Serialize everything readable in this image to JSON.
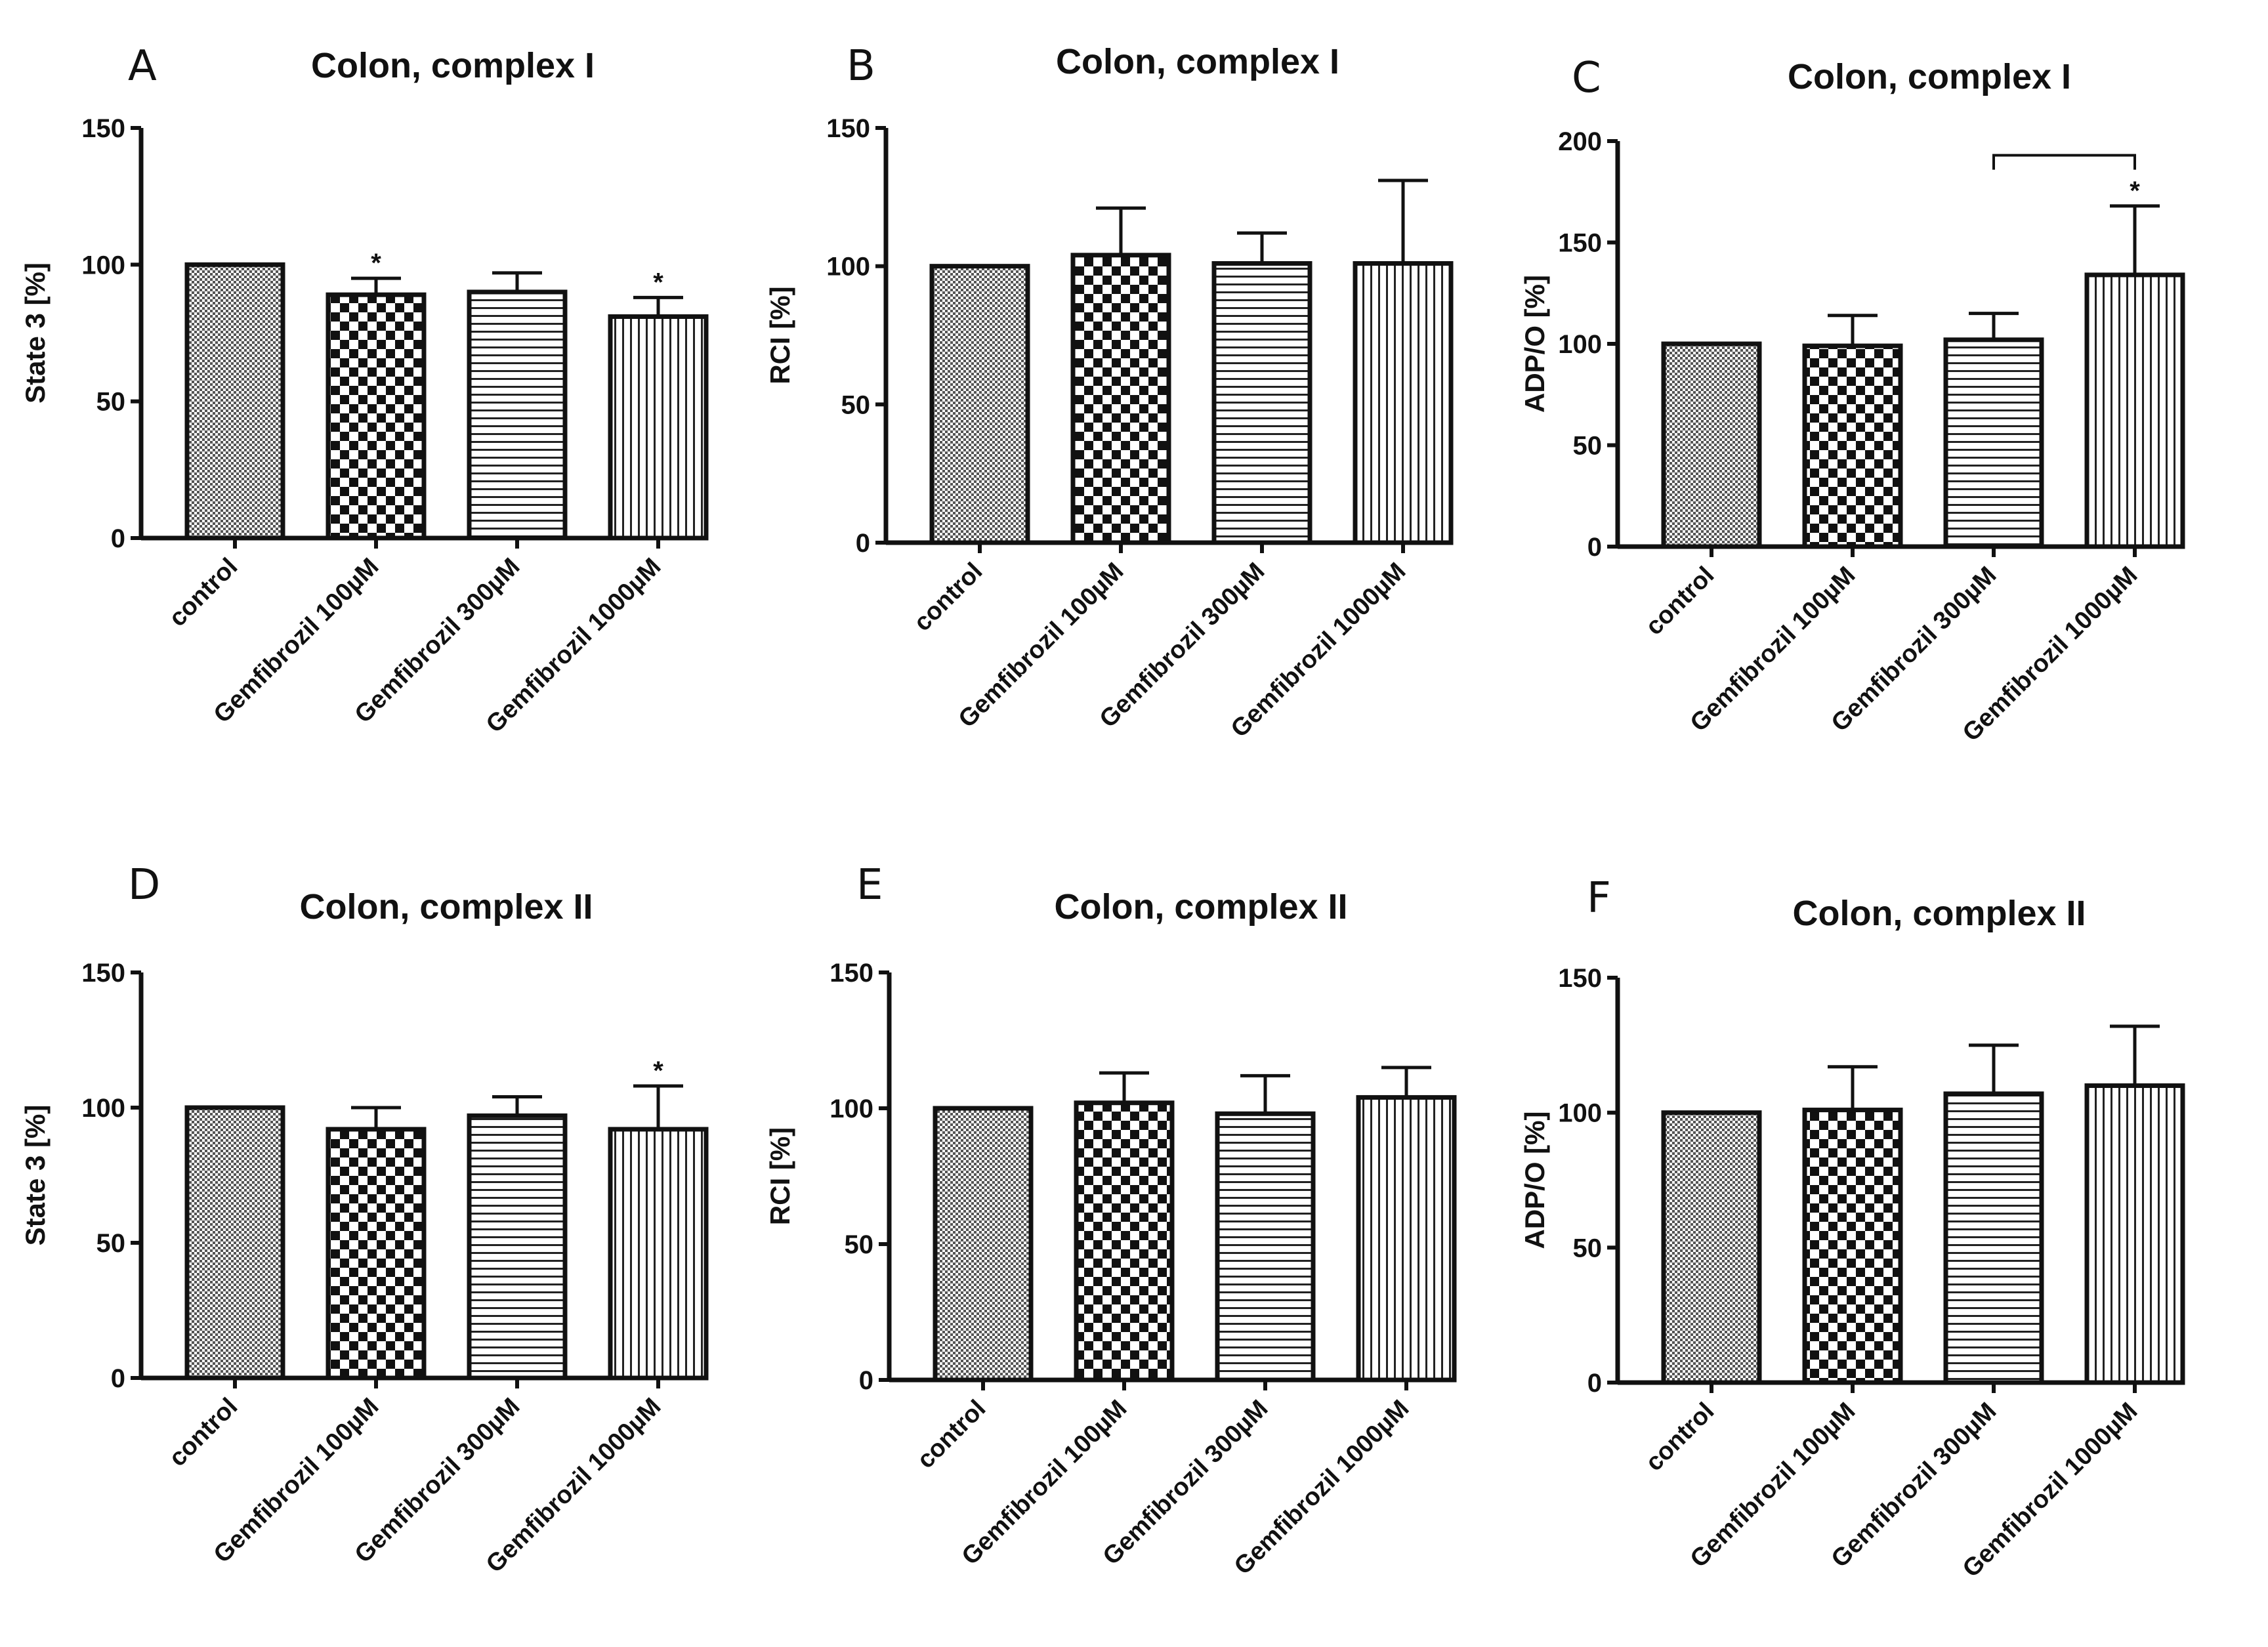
{
  "figure": {
    "category_labels": [
      "control",
      "Gemfibrozil 100µM",
      "Gemfibrozil 300µM",
      "Gemfibrozil 1000µM"
    ],
    "pattern_names": [
      "dense-dots-pattern",
      "checkerboard-pattern",
      "horizontal-lines-pattern",
      "vertical-lines-pattern"
    ]
  },
  "chart_data": [
    {
      "panel": "A",
      "type": "bar",
      "title": "Colon, complex I",
      "ylabel": "State 3 [%]",
      "categories": [
        "control",
        "Gemfibrozil 100µM",
        "Gemfibrozil 300µM",
        "Gemfibrozil 1000µM"
      ],
      "values": [
        100,
        89,
        90,
        81
      ],
      "errors": [
        0,
        6,
        7,
        7
      ],
      "ylim": [
        0,
        150
      ],
      "yticks": [
        0,
        50,
        100,
        150
      ],
      "annotations": [
        {
          "category": 1,
          "text": "*"
        },
        {
          "category": 3,
          "text": "*"
        }
      ]
    },
    {
      "panel": "B",
      "type": "bar",
      "title": "Colon, complex I",
      "ylabel": "RCI  [%]",
      "categories": [
        "control",
        "Gemfibrozil 100µM",
        "Gemfibrozil 300µM",
        "Gemfibrozil 1000µM"
      ],
      "values": [
        100,
        104,
        101,
        101
      ],
      "errors": [
        0,
        17,
        11,
        30
      ],
      "ylim": [
        0,
        150
      ],
      "yticks": [
        0,
        50,
        100,
        150
      ],
      "annotations": []
    },
    {
      "panel": "C",
      "type": "bar",
      "title": "Colon, complex I",
      "ylabel": "ADP/O    [%]",
      "categories": [
        "control",
        "Gemfibrozil 100µM",
        "Gemfibrozil 300µM",
        "Gemfibrozil 1000µM"
      ],
      "values": [
        100,
        99,
        102,
        134
      ],
      "errors": [
        0,
        15,
        13,
        34
      ],
      "ylim": [
        0,
        200
      ],
      "yticks": [
        0,
        50,
        100,
        150,
        200
      ],
      "annotations": [
        {
          "category": 3,
          "text": "*"
        }
      ],
      "bracket": {
        "from": 2,
        "to": 3,
        "y": 193
      }
    },
    {
      "panel": "D",
      "type": "bar",
      "title": "Colon, complex II",
      "ylabel": "State 3 [%]",
      "categories": [
        "control",
        "Gemfibrozil 100µM",
        "Gemfibrozil 300µM",
        "Gemfibrozil 1000µM"
      ],
      "values": [
        100,
        92,
        97,
        92
      ],
      "errors": [
        0,
        8,
        7,
        16
      ],
      "ylim": [
        0,
        150
      ],
      "yticks": [
        0,
        50,
        100,
        150
      ],
      "annotations": [
        {
          "category": 3,
          "text": "*"
        }
      ]
    },
    {
      "panel": "E",
      "type": "bar",
      "title": "Colon, complex II",
      "ylabel": "RCI   [%]",
      "categories": [
        "control",
        "Gemfibrozil 100µM",
        "Gemfibrozil 300µM",
        "Gemfibrozil 1000µM"
      ],
      "values": [
        100,
        102,
        98,
        104
      ],
      "errors": [
        0,
        11,
        14,
        11
      ],
      "ylim": [
        0,
        150
      ],
      "yticks": [
        0,
        50,
        100,
        150
      ],
      "annotations": []
    },
    {
      "panel": "F",
      "type": "bar",
      "title": "Colon, complex II",
      "ylabel": "ADP/O    [%]",
      "categories": [
        "control",
        "Gemfibrozil 100µM",
        "Gemfibrozil 300µM",
        "Gemfibrozil 1000µM"
      ],
      "values": [
        100,
        101,
        107,
        110
      ],
      "errors": [
        0,
        16,
        18,
        22
      ],
      "ylim": [
        0,
        150
      ],
      "yticks": [
        0,
        50,
        100,
        150
      ],
      "annotations": []
    }
  ]
}
